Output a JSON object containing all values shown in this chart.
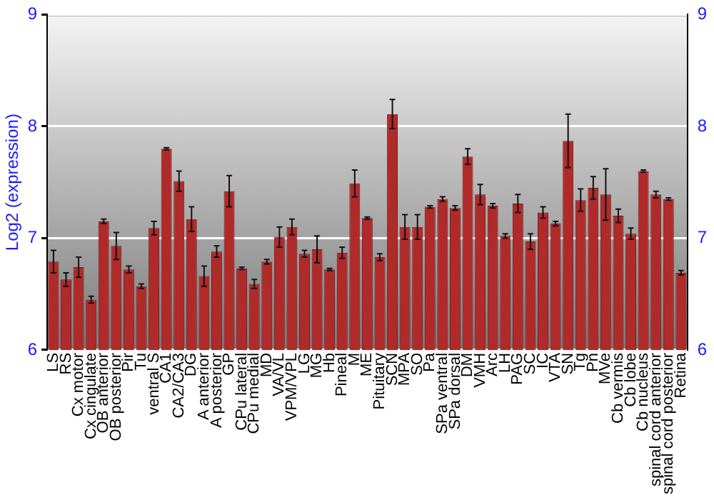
{
  "chart_data": {
    "type": "bar",
    "ylabel": "Log2 (expression)",
    "categories": [
      "LS",
      "RS",
      "Cx motor",
      "Cx cingulate",
      "OB anterior",
      "OB posterior",
      "Pir",
      "Tu",
      "ventral S",
      "CA1",
      "CA2/CA3",
      "DG",
      "A anterior",
      "A posterior",
      "GP",
      "CPu lateral",
      "CPu medial",
      "MD",
      "VA/VL",
      "VPM/VPL",
      "LG",
      "MG",
      "Hb",
      "Pineal",
      "M",
      "ME",
      "Pituitary",
      "SCN",
      "MPA",
      "SO",
      "Pa",
      "SPa ventral",
      "SPa dorsal",
      "DM",
      "VMH",
      "Arc",
      "LH",
      "PAG",
      "SC",
      "IC",
      "VTA",
      "SN",
      "Tg",
      "Pn",
      "MVe",
      "Cb vermis",
      "Cb lobe",
      "Cb nucleus",
      "spinal cord anterior",
      "spinal cord posterior",
      "Retina"
    ],
    "values": [
      6.79,
      6.63,
      6.74,
      6.45,
      7.15,
      6.93,
      6.72,
      6.57,
      7.09,
      7.8,
      7.51,
      7.17,
      6.66,
      6.88,
      7.42,
      6.73,
      6.59,
      6.79,
      7.01,
      7.1,
      6.86,
      6.9,
      6.72,
      6.87,
      7.49,
      7.18,
      6.83,
      8.11,
      7.1,
      7.1,
      7.28,
      7.35,
      7.27,
      7.73,
      7.39,
      7.29,
      7.02,
      7.31,
      6.97,
      7.23,
      7.13,
      7.87,
      7.34,
      7.45,
      7.39,
      7.2,
      7.04,
      7.6,
      7.39,
      7.35,
      6.69
    ],
    "errors": [
      0.1,
      0.06,
      0.09,
      0.03,
      0.02,
      0.12,
      0.03,
      0.02,
      0.06,
      0.01,
      0.09,
      0.11,
      0.09,
      0.05,
      0.14,
      0.01,
      0.04,
      0.02,
      0.09,
      0.07,
      0.03,
      0.12,
      0.01,
      0.05,
      0.12,
      0.01,
      0.03,
      0.13,
      0.11,
      0.11,
      0.01,
      0.02,
      0.02,
      0.07,
      0.09,
      0.02,
      0.02,
      0.08,
      0.07,
      0.05,
      0.02,
      0.24,
      0.1,
      0.1,
      0.23,
      0.06,
      0.05,
      0.01,
      0.03,
      0.01,
      0.02
    ],
    "color": "#b02a2a",
    "ylim": [
      6,
      9
    ],
    "yticks": [
      6,
      7,
      8,
      9
    ],
    "y2lim": [
      6,
      9
    ],
    "y2ticks": [
      6,
      7,
      8,
      9
    ],
    "grid": "y",
    "legend": false
  }
}
